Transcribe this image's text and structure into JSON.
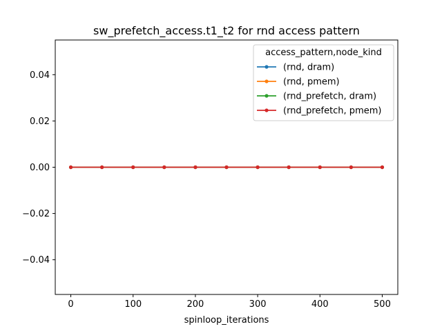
{
  "chart_data": {
    "type": "line",
    "title": "sw_prefetch_access.t1_t2 for rnd access pattern",
    "xlabel": "spinloop_iterations",
    "ylabel": "",
    "x": [
      0,
      50,
      100,
      150,
      200,
      250,
      300,
      350,
      400,
      450,
      500
    ],
    "xlim": [
      -25,
      525
    ],
    "ylim": [
      -0.055,
      0.055
    ],
    "xticks": [
      0,
      100,
      200,
      300,
      400,
      500
    ],
    "xtick_labels": [
      "0",
      "100",
      "200",
      "300",
      "400",
      "500"
    ],
    "yticks": [
      -0.04,
      -0.02,
      0.0,
      0.02,
      0.04
    ],
    "ytick_labels": [
      "−0.04",
      "−0.02",
      "0.00",
      "0.02",
      "0.04"
    ],
    "grid": false,
    "legend_title": "access_pattern,node_kind",
    "legend_position": "top-right",
    "series": [
      {
        "name": "(rnd, dram)",
        "color": "#1f77b4",
        "values": [
          0,
          0,
          0,
          0,
          0,
          0,
          0,
          0,
          0,
          0,
          0
        ]
      },
      {
        "name": "(rnd, pmem)",
        "color": "#ff7f0e",
        "values": [
          0,
          0,
          0,
          0,
          0,
          0,
          0,
          0,
          0,
          0,
          0
        ]
      },
      {
        "name": "(rnd_prefetch, dram)",
        "color": "#2ca02c",
        "values": [
          0,
          0,
          0,
          0,
          0,
          0,
          0,
          0,
          0,
          0,
          0
        ]
      },
      {
        "name": "(rnd_prefetch, pmem)",
        "color": "#d62728",
        "values": [
          0,
          0,
          0,
          0,
          0,
          0,
          0,
          0,
          0,
          0,
          0
        ]
      }
    ]
  }
}
